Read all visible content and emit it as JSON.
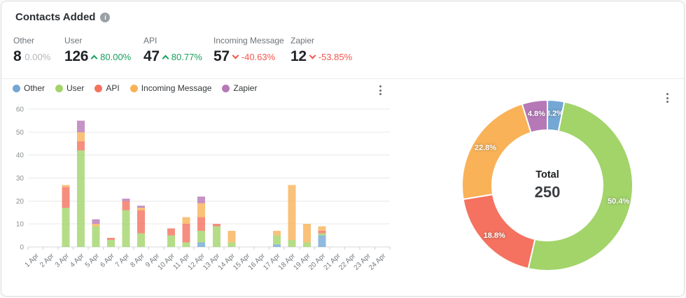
{
  "header": {
    "title": "Contacts Added"
  },
  "icons": {
    "info": "i",
    "kebab": "⋮"
  },
  "colors": {
    "other": "#74a7d4",
    "user": "#a2d46a",
    "api": "#f4725f",
    "incoming_message": "#f9b257",
    "zapier": "#b678b7",
    "positive": "#16a05d",
    "negative": "#f4564e",
    "neutral": "#b3b6b9"
  },
  "stats": {
    "items": [
      {
        "label": "Other",
        "value": "8",
        "change": "0.00%",
        "direction": "none"
      },
      {
        "label": "User",
        "value": "126",
        "change": "80.00%",
        "direction": "up"
      },
      {
        "label": "API",
        "value": "47",
        "change": "80.77%",
        "direction": "up"
      },
      {
        "label": "Incoming Message",
        "value": "57",
        "change": "-40.63%",
        "direction": "down"
      },
      {
        "label": "Zapier",
        "value": "12",
        "change": "-53.85%",
        "direction": "down"
      }
    ]
  },
  "legend": {
    "items": [
      {
        "label": "Other",
        "color_key": "other"
      },
      {
        "label": "User",
        "color_key": "user"
      },
      {
        "label": "API",
        "color_key": "api"
      },
      {
        "label": "Incoming Message",
        "color_key": "incoming_message"
      },
      {
        "label": "Zapier",
        "color_key": "zapier"
      }
    ]
  },
  "chart_data": [
    {
      "type": "bar",
      "stacked": true,
      "grid": true,
      "legend_position": "top",
      "ylim": [
        0,
        60
      ],
      "yticks": [
        0,
        10,
        20,
        30,
        40,
        50,
        60
      ],
      "categories": [
        "1 Apr",
        "2 Apr",
        "3 Apr",
        "4 Apr",
        "5 Apr",
        "6 Apr",
        "7 Apr",
        "8 Apr",
        "9 Apr",
        "10 Apr",
        "11 Apr",
        "12 Apr",
        "13 Apr",
        "14 Apr",
        "15 Apr",
        "16 Apr",
        "17 Apr",
        "18 Apr",
        "19 Apr",
        "20 Apr",
        "21 Apr",
        "22 Apr",
        "23 Apr",
        "24 Apr"
      ],
      "series": [
        {
          "name": "Other",
          "color_key": "other",
          "values": [
            0,
            0,
            0,
            0,
            0,
            0,
            0,
            0,
            0,
            0,
            0,
            2,
            0,
            0,
            0,
            0,
            1,
            0,
            0,
            5,
            0,
            0,
            0,
            0
          ]
        },
        {
          "name": "User",
          "color_key": "user",
          "values": [
            0,
            0,
            17,
            42,
            9,
            3,
            16,
            6,
            0,
            5,
            2,
            5,
            9,
            2,
            0,
            0,
            4,
            3,
            2,
            1,
            0,
            0,
            0,
            0
          ]
        },
        {
          "name": "API",
          "color_key": "api",
          "values": [
            0,
            0,
            9,
            4,
            0,
            1,
            4,
            10,
            0,
            3,
            8,
            6,
            1,
            0,
            0,
            0,
            0,
            0,
            0,
            1,
            0,
            0,
            0,
            0
          ]
        },
        {
          "name": "Incoming Message",
          "color_key": "incoming_message",
          "values": [
            0,
            0,
            1,
            4,
            1,
            0,
            0,
            1,
            0,
            0,
            3,
            6,
            0,
            5,
            0,
            0,
            2,
            24,
            8,
            2,
            0,
            0,
            0,
            0
          ]
        },
        {
          "name": "Zapier",
          "color_key": "zapier",
          "values": [
            0,
            0,
            0,
            5,
            2,
            0,
            1,
            1,
            0,
            0,
            0,
            3,
            0,
            0,
            0,
            0,
            0,
            0,
            0,
            0,
            0,
            0,
            0,
            0
          ]
        }
      ]
    },
    {
      "type": "pie",
      "donut": true,
      "slices": [
        {
          "name": "Other",
          "color_key": "other",
          "value": 8,
          "pct": 3.2,
          "label": "3.2%"
        },
        {
          "name": "User",
          "color_key": "user",
          "value": 126,
          "pct": 50.4,
          "label": "50.4%"
        },
        {
          "name": "API",
          "color_key": "api",
          "value": 47,
          "pct": 18.8,
          "label": "18.8%"
        },
        {
          "name": "Incoming Message",
          "color_key": "incoming_message",
          "value": 57,
          "pct": 22.8,
          "label": "22.8%"
        },
        {
          "name": "Zapier",
          "color_key": "zapier",
          "value": 12,
          "pct": 4.8,
          "label": "4.8%"
        }
      ],
      "center": {
        "label": "Total",
        "value": "250"
      }
    }
  ]
}
